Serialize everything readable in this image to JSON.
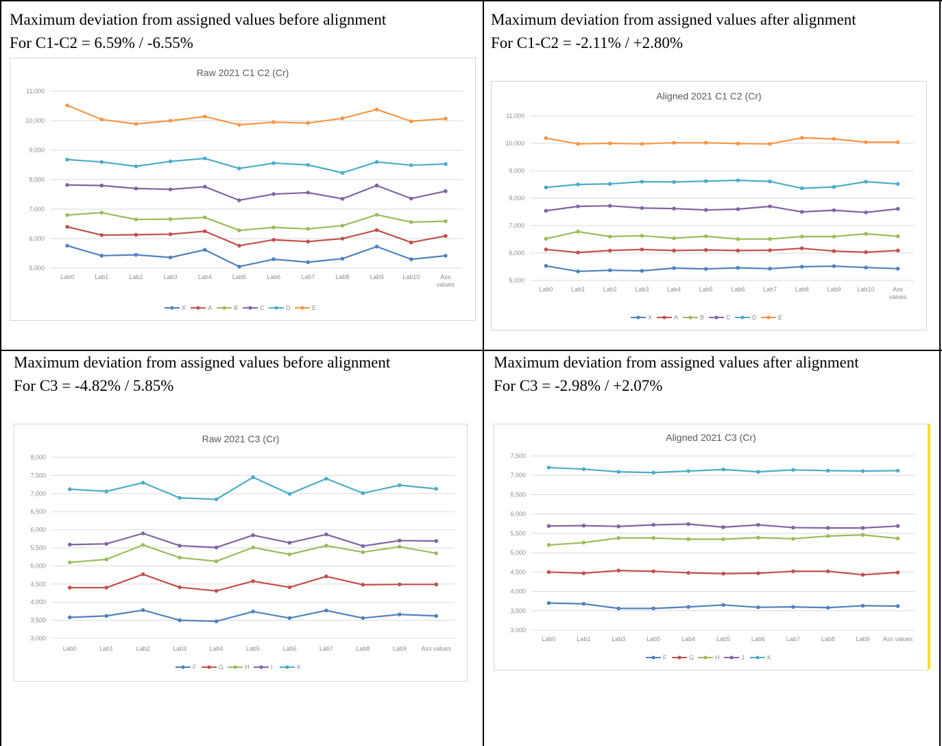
{
  "panels": {
    "raw_c1c2": {
      "heading_line1": "Maximum deviation from assigned values before alignment",
      "heading_line2": "For C1-C2 = 6.59% / -6.55%"
    },
    "aligned_c1c2": {
      "heading_line1": "Maximum deviation from assigned values after alignment",
      "heading_line2": "For C1-C2 = -2.11% / +2.80%"
    },
    "raw_c3": {
      "heading_line1": "Maximum deviation from assigned values before alignment",
      "heading_line2": "For C3 = -4.82% / 5.85%"
    },
    "aligned_c3": {
      "heading_line1": "Maximum deviation from assigned values after alignment",
      "heading_line2": "For C3 = -2.98% / +2.07%"
    }
  },
  "colors": {
    "blue": "#4f81bd",
    "red": "#c0504d",
    "green": "#9bbb59",
    "purple": "#8064a2",
    "teal": "#4bacc6",
    "orange": "#f79646",
    "gridline": "#d9d9d9",
    "highlight": "#f2e21b"
  },
  "chart_data": [
    {
      "type": "line",
      "title": "Raw 2021 C1 C2 (Cr)",
      "categories": [
        "Lab0",
        "Lab1",
        "Lab2",
        "Lab3",
        "Lab4",
        "Lab5",
        "Lab6",
        "Lab7",
        "Lab8",
        "Lab9",
        "Lab10",
        "Ass values"
      ],
      "ylim": [
        5000,
        11000
      ],
      "yticks": [
        "5,000",
        "6,000",
        "7,000",
        "8,000",
        "9,000",
        "10,000",
        "11,000"
      ],
      "ytick_values": [
        5000,
        6000,
        7000,
        8000,
        9000,
        10000,
        11000
      ],
      "grid": true,
      "legend": "bottom",
      "series": [
        {
          "name": "X",
          "color": "#4f81bd",
          "values": [
            5760,
            5420,
            5450,
            5360,
            5620,
            5050,
            5300,
            5200,
            5320,
            5730,
            5300,
            5420
          ]
        },
        {
          "name": "A",
          "color": "#c0504d",
          "values": [
            6400,
            6120,
            6130,
            6150,
            6250,
            5760,
            5960,
            5900,
            6000,
            6290,
            5870,
            6090
          ]
        },
        {
          "name": "B",
          "color": "#9bbb59",
          "values": [
            6800,
            6880,
            6650,
            6660,
            6720,
            6280,
            6380,
            6330,
            6440,
            6810,
            6560,
            6590
          ]
        },
        {
          "name": "C",
          "color": "#8064a2",
          "values": [
            7820,
            7800,
            7700,
            7670,
            7760,
            7300,
            7510,
            7560,
            7350,
            7800,
            7360,
            7610
          ]
        },
        {
          "name": "D",
          "color": "#4bacc6",
          "values": [
            8680,
            8600,
            8450,
            8620,
            8720,
            8380,
            8560,
            8500,
            8230,
            8600,
            8490,
            8530
          ]
        },
        {
          "name": "E",
          "color": "#f79646",
          "values": [
            10520,
            10040,
            9890,
            10000,
            10140,
            9860,
            9950,
            9920,
            10080,
            10380,
            9980,
            10070
          ]
        }
      ]
    },
    {
      "type": "line",
      "title": "Aligned 2021 C1 C2 (Cr)",
      "categories": [
        "Lab0",
        "Lab1",
        "Lab2",
        "Lab3",
        "Lab4",
        "Lab5",
        "Lab6",
        "Lab7",
        "Lab8",
        "Lab9",
        "Lab10",
        "Ass values"
      ],
      "ylim": [
        5000,
        11000
      ],
      "yticks": [
        "5,000",
        "6,000",
        "7,000",
        "8,000",
        "9,000",
        "10,000",
        "11,000"
      ],
      "ytick_values": [
        5000,
        6000,
        7000,
        8000,
        9000,
        10000,
        11000
      ],
      "grid": true,
      "legend": "bottom",
      "series": [
        {
          "name": "X",
          "color": "#4f81bd",
          "values": [
            5530,
            5330,
            5370,
            5350,
            5450,
            5420,
            5460,
            5430,
            5500,
            5520,
            5470,
            5430
          ]
        },
        {
          "name": "A",
          "color": "#c0504d",
          "values": [
            6130,
            6020,
            6090,
            6130,
            6090,
            6110,
            6090,
            6100,
            6170,
            6070,
            6030,
            6090
          ]
        },
        {
          "name": "B",
          "color": "#9bbb59",
          "values": [
            6520,
            6780,
            6600,
            6630,
            6540,
            6610,
            6510,
            6510,
            6600,
            6600,
            6700,
            6610
          ]
        },
        {
          "name": "C",
          "color": "#8064a2",
          "values": [
            7540,
            7700,
            7720,
            7640,
            7620,
            7570,
            7600,
            7700,
            7500,
            7560,
            7480,
            7610
          ]
        },
        {
          "name": "D",
          "color": "#4bacc6",
          "values": [
            8390,
            8500,
            8520,
            8600,
            8590,
            8620,
            8650,
            8610,
            8360,
            8410,
            8600,
            8520
          ]
        },
        {
          "name": "E",
          "color": "#f79646",
          "values": [
            10190,
            9980,
            10000,
            9980,
            10020,
            10020,
            9990,
            9980,
            10200,
            10160,
            10040,
            10040
          ]
        }
      ]
    },
    {
      "type": "line",
      "title": "Raw 2021 C3 (Cr)",
      "categories": [
        "Lab0",
        "Lab1",
        "Lab2",
        "Lab3",
        "Lab4",
        "Lab5",
        "Lab6",
        "Lab7",
        "Lab8",
        "Lab9",
        "Ass values"
      ],
      "ylim": [
        3000,
        8000
      ],
      "yticks": [
        "3,000",
        "3,500",
        "4,000",
        "4,500",
        "5,000",
        "5,500",
        "6,000",
        "6,500",
        "7,000",
        "7,500",
        "8,000"
      ],
      "ytick_values": [
        3000,
        3500,
        4000,
        4500,
        5000,
        5500,
        6000,
        6500,
        7000,
        7500,
        8000
      ],
      "grid": true,
      "legend": "bottom",
      "series": [
        {
          "name": "F",
          "color": "#4f81bd",
          "values": [
            3580,
            3620,
            3780,
            3500,
            3470,
            3740,
            3560,
            3770,
            3560,
            3660,
            3620
          ]
        },
        {
          "name": "G",
          "color": "#c0504d",
          "values": [
            4400,
            4400,
            4770,
            4410,
            4310,
            4580,
            4410,
            4710,
            4480,
            4490,
            4490
          ]
        },
        {
          "name": "H",
          "color": "#9bbb59",
          "values": [
            5100,
            5180,
            5580,
            5230,
            5130,
            5510,
            5320,
            5560,
            5380,
            5530,
            5350
          ]
        },
        {
          "name": "I",
          "color": "#8064a2",
          "values": [
            5590,
            5610,
            5900,
            5560,
            5510,
            5850,
            5640,
            5870,
            5550,
            5700,
            5690
          ]
        },
        {
          "name": "K",
          "color": "#4bacc6",
          "values": [
            7120,
            7060,
            7300,
            6880,
            6840,
            7450,
            6990,
            7410,
            7010,
            7230,
            7130
          ]
        }
      ]
    },
    {
      "type": "line",
      "title": "Aligned 2021 C3 (Cr)",
      "categories": [
        "Lab0",
        "Lab1",
        "Lab3",
        "Lab5",
        "Lab4",
        "Lab5",
        "Lab6",
        "Lab7",
        "Lab8",
        "Lab9",
        "Ass values"
      ],
      "ylim": [
        3000,
        7500
      ],
      "yticks": [
        "3,000",
        "3,500",
        "4,000",
        "4,500",
        "5,000",
        "5,500",
        "6,000",
        "6,500",
        "7,000",
        "7,500"
      ],
      "ytick_values": [
        3000,
        3500,
        4000,
        4500,
        5000,
        5500,
        6000,
        6500,
        7000,
        7500
      ],
      "grid": true,
      "legend": "bottom",
      "series": [
        {
          "name": "F",
          "color": "#4f81bd",
          "values": [
            3700,
            3680,
            3560,
            3560,
            3600,
            3650,
            3590,
            3600,
            3580,
            3630,
            3620
          ]
        },
        {
          "name": "G",
          "color": "#c0504d",
          "values": [
            4500,
            4470,
            4540,
            4520,
            4480,
            4460,
            4470,
            4520,
            4520,
            4430,
            4490
          ]
        },
        {
          "name": "H",
          "color": "#9bbb59",
          "values": [
            5200,
            5260,
            5380,
            5380,
            5350,
            5350,
            5390,
            5360,
            5430,
            5460,
            5370
          ]
        },
        {
          "name": "J",
          "color": "#8064a2",
          "values": [
            5690,
            5700,
            5680,
            5720,
            5740,
            5660,
            5720,
            5650,
            5640,
            5640,
            5690
          ]
        },
        {
          "name": "K",
          "color": "#4bacc6",
          "values": [
            7200,
            7160,
            7090,
            7070,
            7110,
            7150,
            7090,
            7140,
            7120,
            7110,
            7120
          ]
        }
      ]
    }
  ]
}
